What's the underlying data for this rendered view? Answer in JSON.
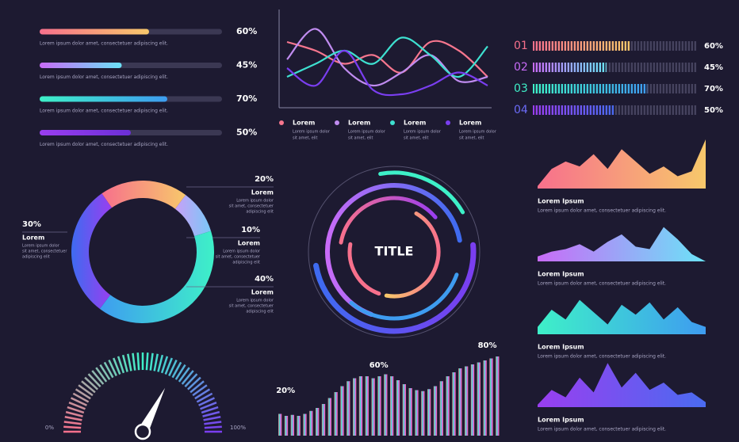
{
  "progress_bars": [
    {
      "value": 60,
      "label": "60%",
      "caption": "Lorem ipsum dolor amet, consectetuer adipiscing elit.",
      "colors": [
        "#f7708c",
        "#f7c86b"
      ]
    },
    {
      "value": 45,
      "label": "45%",
      "caption": "Lorem ipsum dolor amet, consectetuer adipiscing elit.",
      "colors": [
        "#c86bf7",
        "#6be3f7"
      ]
    },
    {
      "value": 70,
      "label": "70%",
      "caption": "Lorem ipsum dolor amet, consectetuer adipiscing elit.",
      "colors": [
        "#3ef0c8",
        "#3e9cf0"
      ]
    },
    {
      "value": 50,
      "label": "50%",
      "caption": "Lorem ipsum dolor amet, consectetuer adipiscing elit.",
      "colors": [
        "#9a3ef0",
        "#6b2fd6"
      ]
    }
  ],
  "line_chart": {
    "ylim": [
      0,
      100
    ],
    "series": [
      {
        "name": "Lorem",
        "color": "#f7768e",
        "text": [
          "Lorem ipsum dolor",
          "sit amet, elit"
        ],
        "values": [
          70,
          60,
          45,
          55,
          35,
          70,
          60,
          30
        ]
      },
      {
        "name": "Lorem",
        "color": "#c08cf0",
        "text": [
          "Lorem ipsum dolor",
          "sit amet, elit"
        ],
        "values": [
          50,
          85,
          40,
          20,
          35,
          55,
          25,
          30
        ]
      },
      {
        "name": "Lorem",
        "color": "#3ee0d0",
        "text": [
          "Lorem ipsum dolor",
          "sit amet, elit"
        ],
        "values": [
          30,
          45,
          60,
          45,
          75,
          55,
          30,
          65
        ]
      },
      {
        "name": "Lorem",
        "color": "#7a3ef0",
        "text": [
          "Lorem ipsum dolor",
          "sit amet, elit"
        ],
        "values": [
          40,
          20,
          60,
          15,
          10,
          20,
          35,
          20
        ]
      }
    ]
  },
  "numbered_bars": [
    {
      "number": "01",
      "value": 60,
      "label": "60%",
      "color": "#f7708c",
      "colors": [
        "#f7708c",
        "#f7c86b"
      ]
    },
    {
      "number": "02",
      "value": 45,
      "label": "45%",
      "color": "#c86bf7",
      "colors": [
        "#c86bf7",
        "#6be3f7"
      ]
    },
    {
      "number": "03",
      "value": 70,
      "label": "70%",
      "color": "#3ef0c8",
      "colors": [
        "#3ef0c8",
        "#3e9cf0"
      ]
    },
    {
      "number": "04",
      "value": 50,
      "label": "50%",
      "color": "#6b6bf7",
      "colors": [
        "#9a3ef0",
        "#4a6bf0"
      ]
    }
  ],
  "donut": [
    {
      "value": 20,
      "label": "20%",
      "name": "Lorem",
      "text": [
        "Lorem ipsum dolor",
        "sit amet, consectetuer",
        "adipiscing elit"
      ],
      "colors": [
        "#f7708c",
        "#f7c86b"
      ]
    },
    {
      "value": 10,
      "label": "10%",
      "name": "Lorem",
      "text": [
        "Lorem ipsum dolor",
        "sit amet, consectetuer",
        "adipiscing elit"
      ],
      "colors": [
        "#c8a0f7",
        "#7ac8f7"
      ]
    },
    {
      "value": 40,
      "label": "40%",
      "name": "Lorem",
      "text": [
        "Lorem ipsum dolor",
        "sit amet, consectetuer",
        "adipiscing elit"
      ],
      "colors": [
        "#3e9cf0",
        "#3ef0c8"
      ]
    },
    {
      "value": 30,
      "label": "30%",
      "name": "Lorem",
      "text": [
        "Lorem ipsum dolor",
        "sit amet, consectetuer",
        "adipiscing elit"
      ],
      "colors": [
        "#3e6bf0",
        "#9a3ef0"
      ]
    }
  ],
  "rings": {
    "title": "TITLE"
  },
  "gauge": {
    "min": {
      "value": 0,
      "label": "0%"
    },
    "max": {
      "value": 100,
      "label": "100%"
    },
    "value": 65,
    "colors": [
      "#f7708c",
      "#3ef0c8",
      "#7a3ef0"
    ]
  },
  "wave_bars": {
    "values": [
      22,
      20,
      21,
      20,
      22,
      25,
      28,
      32,
      38,
      44,
      50,
      55,
      58,
      60,
      60,
      58,
      60,
      62,
      60,
      56,
      52,
      48,
      46,
      45,
      47,
      50,
      55,
      60,
      64,
      68,
      70,
      72,
      74,
      76,
      78,
      80
    ],
    "colors": [
      "#f7708c",
      "#3ef0c8",
      "#c86bf7",
      "#f7708c"
    ],
    "annotations": [
      {
        "value": 20,
        "label": "20%"
      },
      {
        "value": 60,
        "label": "60%"
      },
      {
        "value": 80,
        "label": "80%"
      }
    ]
  },
  "area_charts": [
    {
      "title": "Lorem Ipsum",
      "text": "Lorem ipsum dolor amet, consectetuer adipiscing elit.",
      "colors": [
        "#f7708c",
        "#f7c86b"
      ],
      "values": [
        5,
        40,
        55,
        45,
        70,
        40,
        80,
        55,
        30,
        45,
        25,
        35,
        100
      ]
    },
    {
      "title": "Lorem Ipsum",
      "text": "Lorem ipsum dolor amet, consectetuer adipiscing elit.",
      "colors": [
        "#c86bf7",
        "#6be3f7"
      ],
      "values": [
        10,
        20,
        25,
        35,
        20,
        40,
        55,
        30,
        25,
        70,
        45,
        15,
        0
      ]
    },
    {
      "title": "Lorem Ipsum",
      "text": "Lorem ipsum dolor amet, consectetuer adipiscing elit.",
      "colors": [
        "#3ef0c8",
        "#3e9cf0"
      ],
      "values": [
        15,
        50,
        30,
        70,
        45,
        20,
        60,
        40,
        65,
        30,
        55,
        25,
        15
      ]
    },
    {
      "title": "Lorem Ipsum",
      "text": "Lorem ipsum dolor amet, consectetuer adipiscing elit.",
      "colors": [
        "#9a3ef0",
        "#4a6bf0"
      ],
      "values": [
        5,
        35,
        20,
        60,
        30,
        90,
        40,
        70,
        35,
        50,
        25,
        30,
        10
      ]
    }
  ]
}
